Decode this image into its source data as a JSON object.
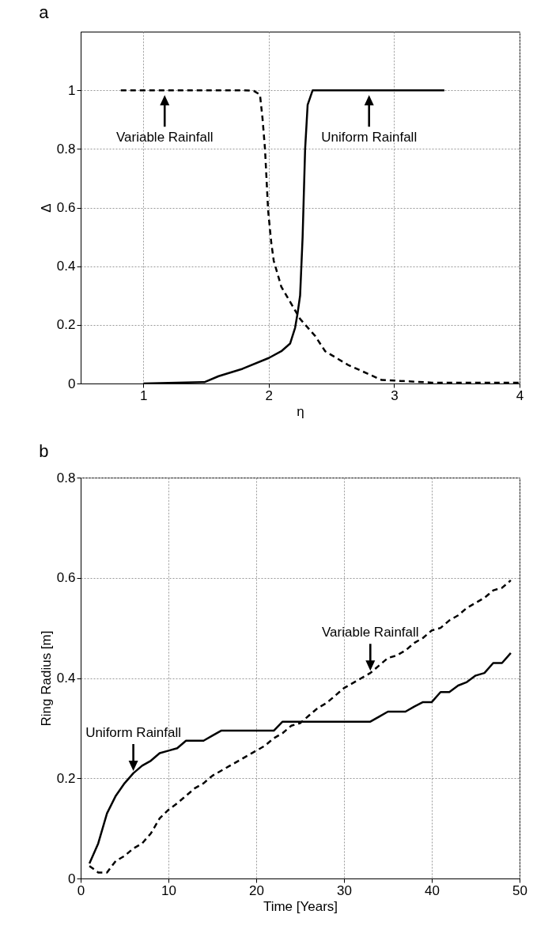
{
  "chart_data": [
    {
      "type": "line",
      "title": "a",
      "xlabel": "η",
      "ylabel": "Δ",
      "xlim": [
        0.5,
        4
      ],
      "xticks": [
        1,
        2,
        3,
        4
      ],
      "ylim": [
        0,
        1.2
      ],
      "yticks": [
        0,
        0.2,
        0.4,
        0.6,
        0.8,
        1
      ],
      "grid": true,
      "series": [
        {
          "color": "#000000",
          "line_style": "dashed",
          "x": [
            0.82,
            1.2,
            1.5,
            1.8,
            1.88,
            1.93,
            1.95,
            1.97,
            1.995,
            2.02,
            2.04,
            2.1,
            2.25,
            2.37,
            2.45,
            2.63,
            2.9,
            3.0,
            3.3,
            4.0
          ],
          "values": [
            1,
            1,
            1,
            1,
            0.998,
            0.985,
            0.905,
            0.8,
            0.59,
            0.48,
            0.418,
            0.33,
            0.22,
            0.162,
            0.11,
            0.064,
            0.012,
            0.01,
            0.003,
            0.003
          ]
        },
        {
          "color": "#000000",
          "line_style": "solid",
          "x": [
            1.0,
            1.2,
            1.49,
            1.6,
            1.79,
            2.0,
            2.1,
            2.17,
            2.21,
            2.23,
            2.25,
            2.27,
            2.29,
            2.31,
            2.35,
            2.7,
            3.4
          ],
          "values": [
            0,
            0.002,
            0.005,
            0.025,
            0.05,
            0.087,
            0.11,
            0.136,
            0.19,
            0.24,
            0.3,
            0.5,
            0.8,
            0.95,
            1,
            1,
            1
          ]
        }
      ],
      "annotations": [
        {
          "text": "Variable Rainfall",
          "x": 1.17,
          "y": 1
        },
        {
          "text": "Uniform Rainfall",
          "x": 2.8,
          "y": 1
        }
      ]
    },
    {
      "type": "line",
      "title": "b",
      "xlabel": "Time [Years]",
      "ylabel": "Ring Radius [m]",
      "xlim": [
        0,
        50
      ],
      "xticks": [
        0,
        10,
        20,
        30,
        40,
        50
      ],
      "ylim": [
        0,
        0.8
      ],
      "yticks": [
        0,
        0.2,
        0.4,
        0.6,
        0.8
      ],
      "grid": true,
      "x": [
        1,
        2,
        3,
        4,
        5,
        6,
        7,
        8,
        9,
        10,
        11,
        12,
        13,
        14,
        15,
        16,
        17,
        18,
        19,
        20,
        21,
        22,
        23,
        24,
        25,
        26,
        27,
        28,
        29,
        30,
        31,
        32,
        33,
        34,
        35,
        36,
        37,
        38,
        39,
        40,
        41,
        42,
        43,
        44,
        45,
        46,
        47,
        48,
        49
      ],
      "series": [
        {
          "color": "#000000",
          "line_style": "solid",
          "values": [
            0.03,
            0.07,
            0.13,
            0.165,
            0.19,
            0.21,
            0.225,
            0.235,
            0.25,
            0.255,
            0.26,
            0.275,
            0.275,
            0.275,
            0.285,
            0.295,
            0.295,
            0.295,
            0.295,
            0.295,
            0.295,
            0.295,
            0.313,
            0.313,
            0.313,
            0.313,
            0.313,
            0.313,
            0.313,
            0.313,
            0.313,
            0.313,
            0.313,
            0.323,
            0.333,
            0.333,
            0.333,
            0.343,
            0.352,
            0.352,
            0.372,
            0.372,
            0.385,
            0.392,
            0.405,
            0.41,
            0.43,
            0.43,
            0.45
          ]
        },
        {
          "color": "#000000",
          "line_style": "dashed",
          "values": [
            0.025,
            0.012,
            0.012,
            0.035,
            0.045,
            0.06,
            0.07,
            0.09,
            0.12,
            0.137,
            0.15,
            0.165,
            0.18,
            0.19,
            0.205,
            0.215,
            0.225,
            0.235,
            0.245,
            0.255,
            0.265,
            0.28,
            0.29,
            0.305,
            0.31,
            0.325,
            0.34,
            0.35,
            0.365,
            0.38,
            0.39,
            0.4,
            0.41,
            0.425,
            0.44,
            0.445,
            0.455,
            0.47,
            0.48,
            0.495,
            0.5,
            0.515,
            0.525,
            0.54,
            0.55,
            0.56,
            0.575,
            0.58,
            0.595
          ]
        }
      ],
      "annotations": [
        {
          "text": "Variable Rainfall",
          "x": 33,
          "y": 0.41
        },
        {
          "text": "Uniform Rainfall",
          "x": 6,
          "y": 0.21
        }
      ]
    }
  ]
}
